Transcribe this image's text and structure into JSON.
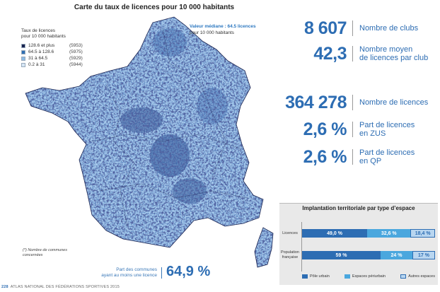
{
  "map": {
    "title": "Carte du taux de licences pour 10 000 habitants",
    "legend_title_line1": "Taux de licences",
    "legend_title_line2": "pour 10 000 habitants",
    "legend": [
      {
        "range": "128.6 et plus",
        "count": "(5953)",
        "color": "#1a2350"
      },
      {
        "range": "64.5 à 128.6",
        "count": "(5975)",
        "color": "#2f6fb3"
      },
      {
        "range": "31  à  64.5",
        "count": "(5929)",
        "color": "#8dbbe5"
      },
      {
        "range": "0.2 à  31",
        "count": "(5944)",
        "color": "#d7e7f6"
      }
    ],
    "median_label": "Valeur médiane : 64.5 licences",
    "median_unit": "pour 10 000 habitants",
    "footnote_line1": "(*) Nombre de communes",
    "footnote_line2": "concernées",
    "share_label_line1": "Part des communes",
    "share_label_line2": "ayant au moins une licence",
    "share_value": "64,9 %"
  },
  "stats": [
    {
      "value": "8 607",
      "label_line1": "Nombre de clubs",
      "label_line2": ""
    },
    {
      "value": "42,3",
      "label_line1": "Nombre moyen",
      "label_line2": "de licences par club"
    },
    {
      "value": "364 278",
      "label_line1": "Nombre de licences",
      "label_line2": ""
    },
    {
      "value": "2,6 %",
      "label_line1": "Part de licences",
      "label_line2": "en ZUS"
    },
    {
      "value": "2,6 %",
      "label_line1": "Part de licences",
      "label_line2": "en QP"
    }
  ],
  "chart_data": {
    "type": "bar",
    "title": "Implantation territoriale par type d’espace",
    "categories": [
      "Licences",
      "Population française"
    ],
    "category_lines": [
      [
        "Licences"
      ],
      [
        "Population",
        "française"
      ]
    ],
    "series": [
      {
        "name": "Pôle urbain",
        "values": [
          49.0,
          59
        ],
        "labels": [
          "49,0 %",
          "59 %"
        ],
        "color": "#2d6db3"
      },
      {
        "name": "Espaces périurbain",
        "values": [
          32.6,
          24
        ],
        "labels": [
          "32,6 %",
          "24 %"
        ],
        "color": "#4aa7de"
      },
      {
        "name": "Autres espaces",
        "values": [
          18.4,
          17
        ],
        "labels": [
          "18,4 %",
          "17 %"
        ],
        "color": "#b9d6f0"
      }
    ],
    "stacked": true,
    "orientation": "horizontal",
    "xlim": [
      0,
      100
    ],
    "legend_position": "bottom"
  },
  "footer": {
    "page": "228",
    "text": "ATLAS NATIONAL DES FÉDÉRATIONS SPORTIVES 2015"
  }
}
